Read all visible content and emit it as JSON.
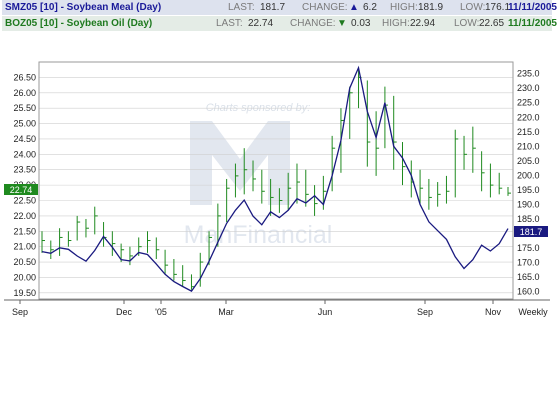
{
  "quotes": [
    {
      "symbol": "SMZ05 [10] - Soybean Meal (Day)",
      "last_label": "LAST:",
      "last": "181.7",
      "change_label": "CHANGE:",
      "change_dir": "▲",
      "change": "6.2",
      "high_label": "HIGH:",
      "high": "181.9",
      "low_label": "LOW:",
      "low": "176.1",
      "date": "11/11/2005",
      "color": "#1a1a99"
    },
    {
      "symbol": "BOZ05 [10] - Soybean Oil (Day)",
      "last_label": "LAST:",
      "last": "22.74",
      "change_label": "CHANGE:",
      "change_dir": "▼",
      "change": "0.03",
      "high_label": "HIGH:",
      "high": "22.94",
      "low_label": "LOW:",
      "low": "22.65",
      "date": "11/11/2005",
      "color": "#1f7a1f"
    }
  ],
  "watermark": {
    "sponsor": "Charts sponsored by:",
    "brand": "ManFinancial"
  },
  "chart_data": {
    "type": "line",
    "x_ticks": [
      "Sep",
      "Dec",
      "'05",
      "Mar",
      "Jun",
      "Sep",
      "Nov",
      "Weekly"
    ],
    "left_axis": {
      "ticks": [
        "26.50",
        "26.00",
        "25.50",
        "25.00",
        "24.50",
        "24.00",
        "23.50",
        "23.00",
        "22.50",
        "22.00",
        "21.50",
        "21.00",
        "20.50",
        "20.00",
        "19.50"
      ],
      "ylim": [
        19.3,
        27.0
      ]
    },
    "right_axis": {
      "ticks": [
        "235.0",
        "230.0",
        "225.0",
        "220.0",
        "215.0",
        "210.0",
        "205.0",
        "200.0",
        "195.0",
        "190.0",
        "185.0",
        "180.0",
        "175.0",
        "170.0",
        "165.0",
        "160.0"
      ],
      "ylim": [
        157.5,
        239.0
      ]
    },
    "last_labels": {
      "oil": "22.74",
      "meal": "181.7"
    },
    "oil_bars": [
      [
        20.8,
        21.5,
        21.2
      ],
      [
        20.6,
        21.2,
        20.9
      ],
      [
        20.7,
        21.6,
        21.3
      ],
      [
        21.0,
        21.5,
        21.2
      ],
      [
        21.2,
        22.0,
        21.8
      ],
      [
        21.3,
        21.9,
        21.6
      ],
      [
        21.4,
        22.3,
        22.0
      ],
      [
        21.0,
        21.8,
        21.3
      ],
      [
        20.7,
        21.5,
        21.1
      ],
      [
        20.5,
        21.1,
        20.9
      ],
      [
        20.4,
        21.0,
        20.7
      ],
      [
        20.7,
        21.3,
        21.0
      ],
      [
        20.8,
        21.5,
        21.2
      ],
      [
        20.6,
        21.3,
        20.9
      ],
      [
        20.1,
        20.9,
        20.4
      ],
      [
        19.9,
        20.6,
        20.1
      ],
      [
        19.7,
        20.4,
        19.9
      ],
      [
        19.6,
        20.1,
        19.7
      ],
      [
        19.7,
        20.8,
        20.5
      ],
      [
        20.4,
        21.5,
        21.3
      ],
      [
        21.0,
        22.4,
        22.0
      ],
      [
        21.8,
        23.2,
        22.9
      ],
      [
        22.6,
        23.7,
        23.3
      ],
      [
        22.7,
        24.2,
        23.5
      ],
      [
        22.8,
        23.8,
        23.2
      ],
      [
        22.4,
        23.5,
        22.8
      ],
      [
        22.0,
        23.2,
        22.6
      ],
      [
        22.1,
        22.9,
        22.5
      ],
      [
        22.2,
        23.4,
        22.9
      ],
      [
        22.4,
        23.7,
        23.1
      ],
      [
        22.3,
        23.5,
        22.7
      ],
      [
        22.0,
        23.0,
        22.4
      ],
      [
        22.2,
        23.3,
        22.8
      ],
      [
        22.8,
        24.6,
        24.2
      ],
      [
        23.4,
        25.5,
        25.1
      ],
      [
        24.5,
        26.2,
        26.0
      ],
      [
        25.5,
        26.8,
        26.5
      ],
      [
        23.6,
        26.4,
        24.4
      ],
      [
        23.3,
        25.4,
        24.2
      ],
      [
        24.2,
        26.2,
        25.6
      ],
      [
        23.5,
        25.9,
        24.4
      ],
      [
        23.0,
        24.4,
        23.6
      ],
      [
        22.6,
        23.8,
        23.1
      ],
      [
        22.4,
        23.5,
        22.9
      ],
      [
        22.2,
        23.2,
        22.6
      ],
      [
        22.3,
        23.1,
        22.7
      ],
      [
        22.4,
        23.3,
        22.8
      ],
      [
        22.6,
        24.8,
        24.5
      ],
      [
        23.5,
        24.6,
        24.0
      ],
      [
        23.4,
        24.9,
        24.2
      ],
      [
        22.8,
        24.1,
        23.4
      ],
      [
        22.6,
        23.7,
        23.0
      ],
      [
        22.7,
        23.4,
        22.9
      ],
      [
        22.65,
        22.94,
        22.74
      ]
    ],
    "meal_close": [
      173.8,
      173.2,
      175.1,
      174.6,
      172.3,
      170.5,
      174.2,
      179.0,
      175.3,
      171.0,
      170.6,
      173.5,
      172.8,
      169.5,
      166.0,
      163.5,
      161.8,
      160.2,
      164.5,
      170.5,
      177.0,
      183.5,
      188.0,
      191.5,
      186.0,
      183.0,
      187.5,
      185.5,
      188.0,
      192.0,
      190.5,
      193.0,
      190.0,
      200.0,
      212.0,
      230.0,
      237.0,
      222.0,
      213.0,
      225.0,
      210.0,
      206.0,
      200.0,
      190.0,
      184.0,
      181.0,
      178.0,
      172.0,
      168.0,
      171.0,
      176.0,
      174.0,
      176.5,
      181.7
    ],
    "colors": {
      "oil": "#1f8a1f",
      "meal": "#1a1a80",
      "grid": "#cfcfcf",
      "last_meal_bg": "#1a1a80",
      "last_oil_bg": "#1f8a1f"
    }
  }
}
